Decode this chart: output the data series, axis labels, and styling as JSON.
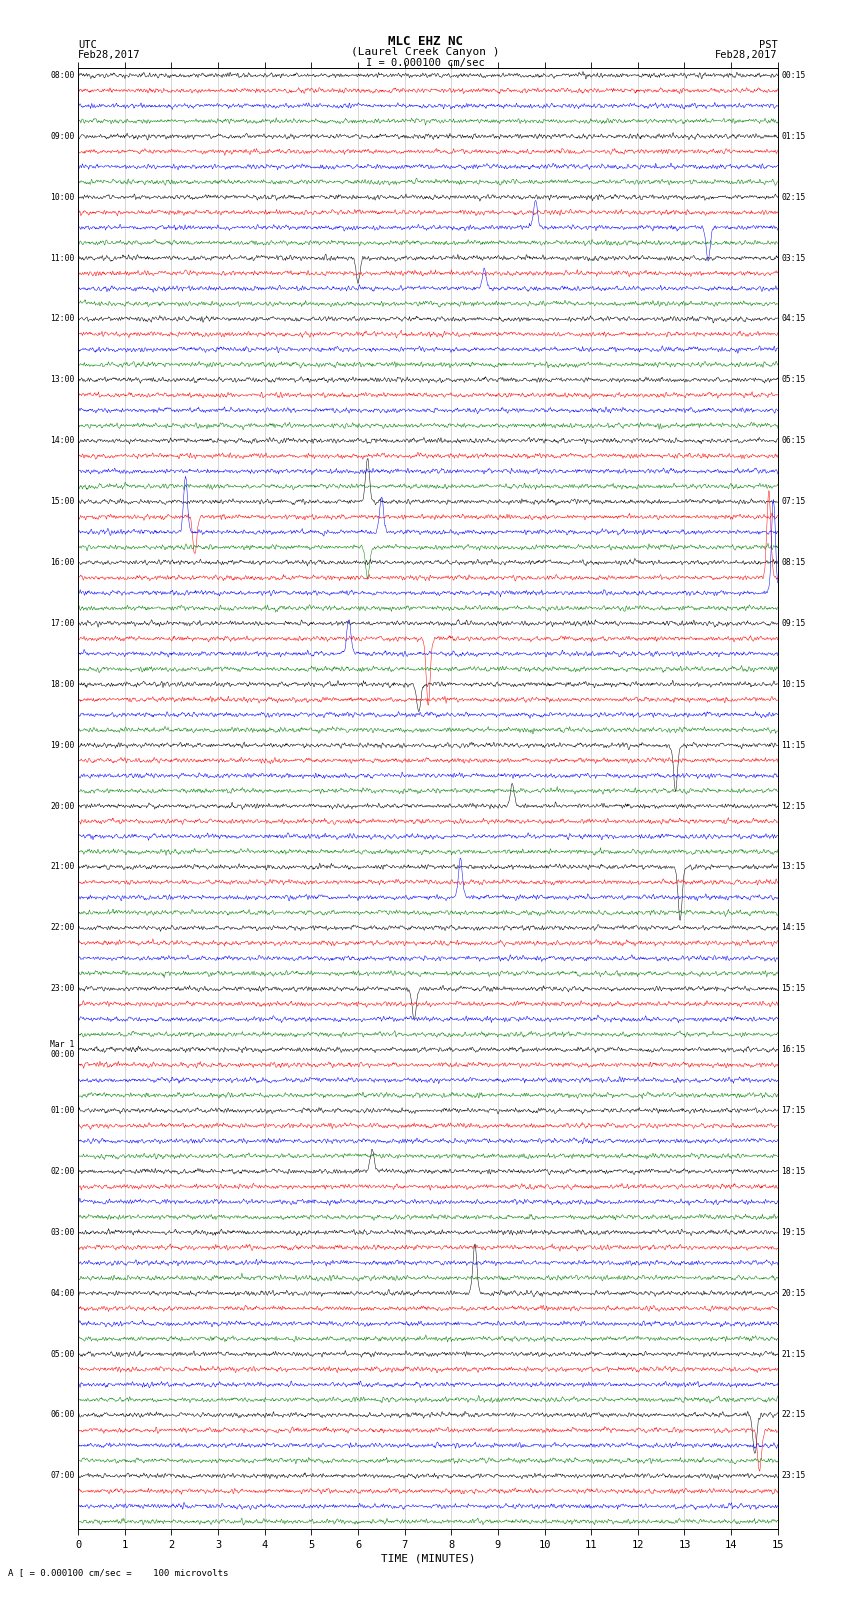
{
  "title_line1": "MLC EHZ NC",
  "title_line2": "(Laurel Creek Canyon )",
  "scale_label": "I = 0.000100 cm/sec",
  "bottom_label": "A [ = 0.000100 cm/sec =    100 microvolts",
  "xlabel": "TIME (MINUTES)",
  "utc_left": "UTC",
  "utc_date": "Feb28,2017",
  "pst_right": "PST",
  "pst_date": "Feb28,2017",
  "utc_hour_labels": [
    "08:00",
    "09:00",
    "10:00",
    "11:00",
    "12:00",
    "13:00",
    "14:00",
    "15:00",
    "16:00",
    "17:00",
    "18:00",
    "19:00",
    "20:00",
    "21:00",
    "22:00",
    "23:00",
    "Mar 1\n00:00",
    "01:00",
    "02:00",
    "03:00",
    "04:00",
    "05:00",
    "06:00",
    "07:00"
  ],
  "pst_hour_labels": [
    "00:15",
    "01:15",
    "02:15",
    "03:15",
    "04:15",
    "05:15",
    "06:15",
    "07:15",
    "08:15",
    "09:15",
    "10:15",
    "11:15",
    "12:15",
    "13:15",
    "14:15",
    "15:15",
    "16:15",
    "17:15",
    "18:15",
    "19:15",
    "20:15",
    "21:15",
    "22:15",
    "23:15"
  ],
  "n_hours": 24,
  "traces_per_hour": 4,
  "trace_colors": [
    "black",
    "red",
    "blue",
    "green"
  ],
  "minutes": 15,
  "samples_per_row": 1800,
  "noise_amp_base": 0.12,
  "background_color": "white",
  "grid_color": "#999999",
  "figure_width": 8.5,
  "figure_height": 16.13,
  "dpi": 100,
  "spike_rows": [
    [
      10,
      9.8,
      2.5
    ],
    [
      10,
      13.5,
      -3.0
    ],
    [
      12,
      6.0,
      -2.2
    ],
    [
      14,
      8.7,
      1.8
    ],
    [
      28,
      6.2,
      4.0
    ],
    [
      29,
      2.5,
      -3.5
    ],
    [
      30,
      2.3,
      5.0
    ],
    [
      30,
      6.5,
      3.2
    ],
    [
      31,
      6.2,
      -2.8
    ],
    [
      33,
      14.8,
      8.0
    ],
    [
      34,
      14.9,
      8.5
    ],
    [
      37,
      7.5,
      -6.0
    ],
    [
      38,
      5.8,
      3.2
    ],
    [
      40,
      7.3,
      -2.5
    ],
    [
      44,
      12.8,
      -4.0
    ],
    [
      48,
      9.3,
      2.0
    ],
    [
      52,
      12.9,
      -5.0
    ],
    [
      54,
      8.2,
      3.5
    ],
    [
      60,
      7.2,
      -2.8
    ],
    [
      72,
      6.3,
      2.0
    ],
    [
      80,
      8.5,
      4.5
    ],
    [
      88,
      14.5,
      -3.5
    ],
    [
      89,
      14.6,
      -3.8
    ]
  ]
}
